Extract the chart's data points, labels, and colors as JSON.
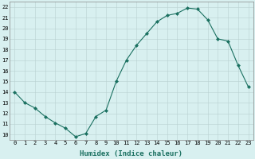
{
  "x": [
    0,
    1,
    2,
    3,
    4,
    5,
    6,
    7,
    8,
    9,
    10,
    11,
    12,
    13,
    14,
    15,
    16,
    17,
    18,
    19,
    20,
    21,
    22,
    23
  ],
  "y": [
    14,
    13,
    12.5,
    11.7,
    11.1,
    10.6,
    9.8,
    10.1,
    11.7,
    12.3,
    15,
    17,
    18.4,
    19.5,
    20.6,
    21.2,
    21.4,
    21.9,
    21.8,
    20.8,
    19.0,
    18.8,
    16.5,
    14.5
  ],
  "line_color": "#1a7060",
  "marker": "D",
  "markersize": 2.0,
  "linewidth": 0.8,
  "bg_color": "#d8f0f0",
  "grid_color": "#b8d0d0",
  "xlabel": "Humidex (Indice chaleur)",
  "xlim": [
    -0.5,
    23.5
  ],
  "ylim": [
    9.5,
    22.5
  ],
  "xticks": [
    0,
    1,
    2,
    3,
    4,
    5,
    6,
    7,
    8,
    9,
    10,
    11,
    12,
    13,
    14,
    15,
    16,
    17,
    18,
    19,
    20,
    21,
    22,
    23
  ],
  "yticks": [
    10,
    11,
    12,
    13,
    14,
    15,
    16,
    17,
    18,
    19,
    20,
    21,
    22
  ],
  "tick_fontsize": 5.0,
  "xlabel_fontsize": 6.5
}
